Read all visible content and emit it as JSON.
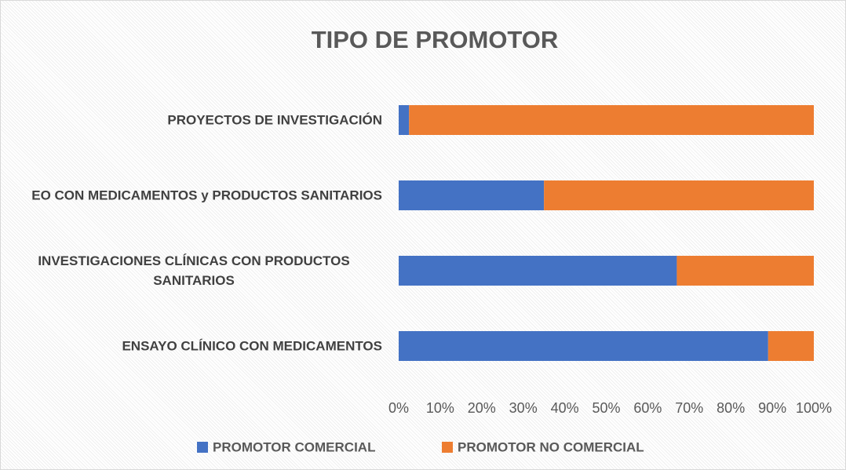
{
  "chart_data": {
    "type": "stacked_barh",
    "title": "TIPO DE PROMOTOR",
    "categories": [
      "ENSAYO CLÍNICO CON MEDICAMENTOS",
      "INVESTIGACIONES CLÍNICAS CON PRODUCTOS SANITARIOS",
      "EO CON MEDICAMENTOS y PRODUCTOS SANITARIOS",
      "PROYECTOS DE INVESTIGACIÓN"
    ],
    "series": [
      {
        "name": "PROMOTOR COMERCIAL",
        "color": "#4472c4",
        "values": [
          89,
          67,
          35,
          2.5
        ]
      },
      {
        "name": "PROMOTOR NO COMERCIAL",
        "color": "#ed7d31",
        "values": [
          11,
          33,
          65,
          97.5
        ]
      }
    ],
    "xlim": [
      0,
      100
    ],
    "xticks": [
      {
        "value": 0,
        "label": "0%"
      },
      {
        "value": 10,
        "label": "10%"
      },
      {
        "value": 20,
        "label": "20%"
      },
      {
        "value": 30,
        "label": "30%"
      },
      {
        "value": 40,
        "label": "40%"
      },
      {
        "value": 50,
        "label": "50%"
      },
      {
        "value": 60,
        "label": "60%"
      },
      {
        "value": 70,
        "label": "70%"
      },
      {
        "value": 80,
        "label": "80%"
      },
      {
        "value": 90,
        "label": "90%"
      },
      {
        "value": 100,
        "label": "100%"
      }
    ],
    "legend": "bottom"
  }
}
